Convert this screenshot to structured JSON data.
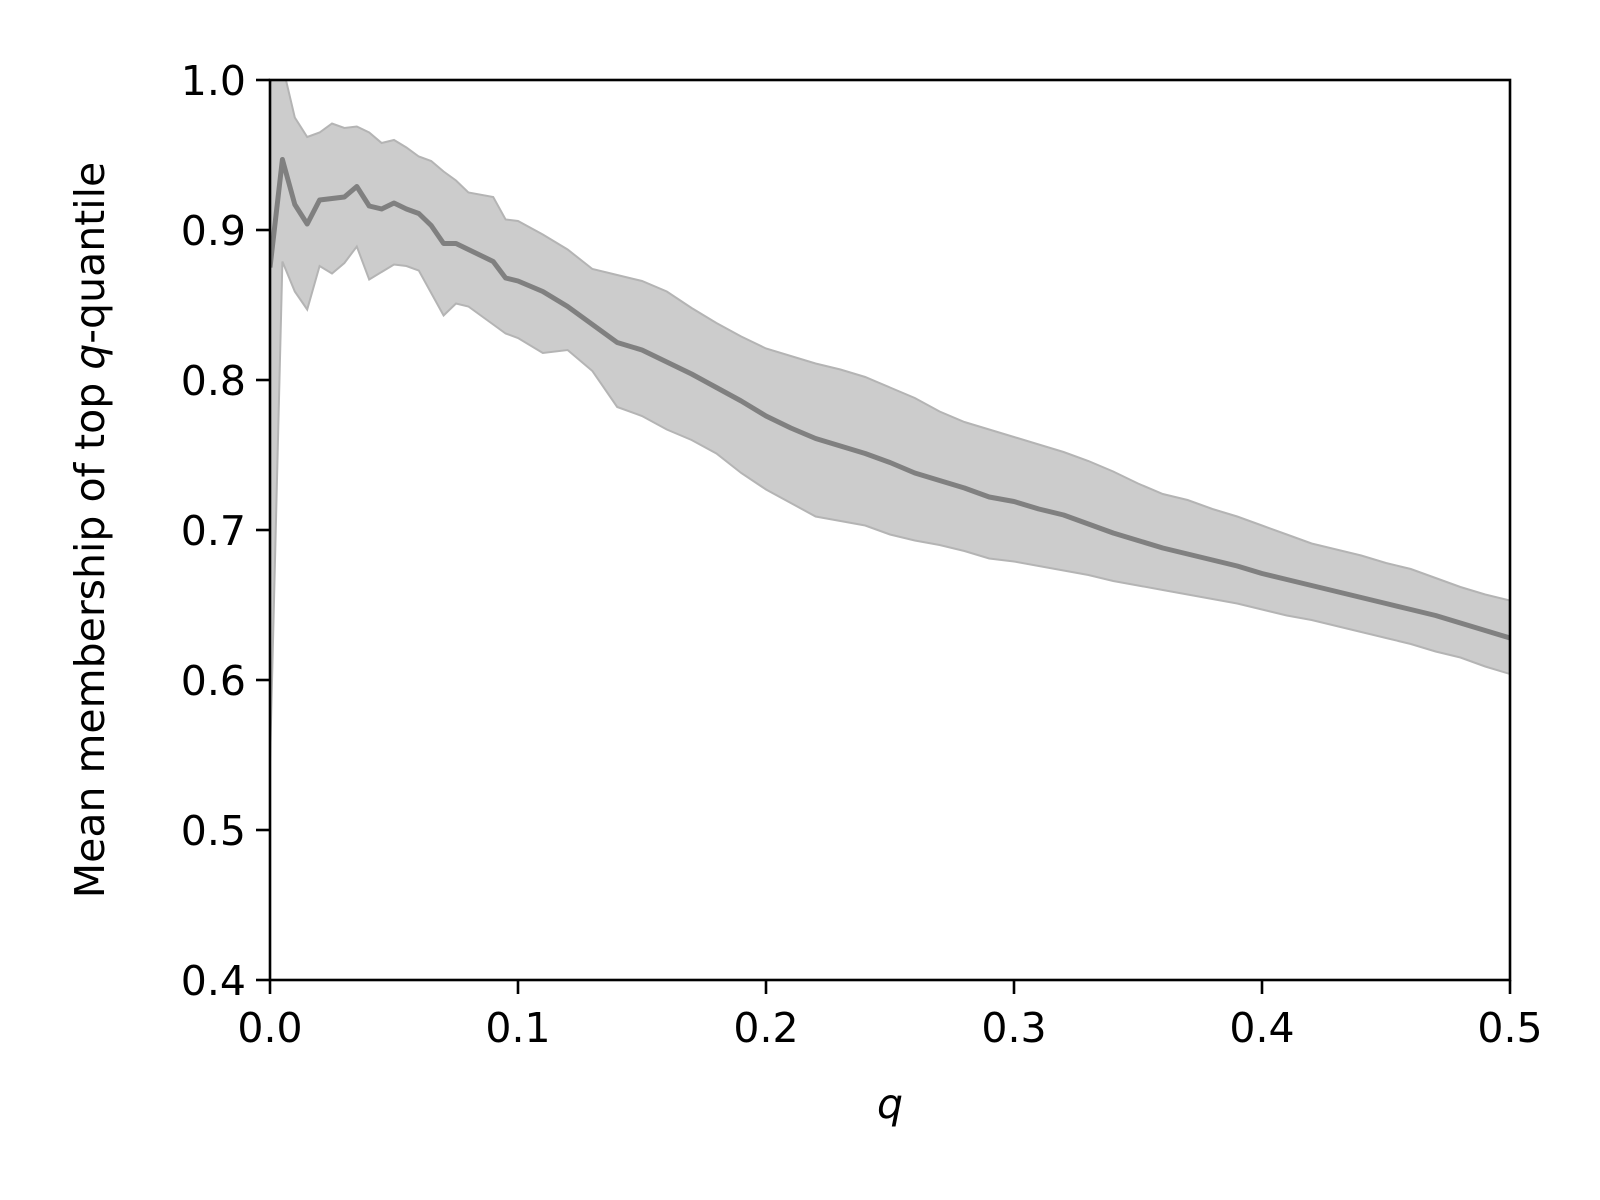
{
  "chart_data": {
    "type": "area",
    "xlabel": "q",
    "ylabel": {
      "prefix": "Mean membership of top ",
      "italic": "q",
      "suffix": "-quantile"
    },
    "xlim": [
      0.0,
      0.5
    ],
    "ylim": [
      0.4,
      1.0
    ],
    "x_ticks": [
      "0.0",
      "0.1",
      "0.2",
      "0.3",
      "0.4",
      "0.5"
    ],
    "y_ticks": [
      "0.4",
      "0.5",
      "0.6",
      "0.7",
      "0.8",
      "0.9",
      "1.0"
    ],
    "grid": false,
    "legend": "none",
    "colors": {
      "line": "#808080",
      "band": "#cccccc",
      "band_edge": "#b4b4b4",
      "axes": "#000000"
    },
    "series": [
      {
        "x": [
          0.0,
          0.005,
          0.01,
          0.015,
          0.02,
          0.025,
          0.03,
          0.035,
          0.04,
          0.045,
          0.05,
          0.055,
          0.06,
          0.065,
          0.07,
          0.075,
          0.08,
          0.09,
          0.095,
          0.1,
          0.11,
          0.12,
          0.13,
          0.14,
          0.15,
          0.16,
          0.17,
          0.18,
          0.19,
          0.2,
          0.21,
          0.22,
          0.23,
          0.24,
          0.25,
          0.26,
          0.27,
          0.28,
          0.29,
          0.3,
          0.31,
          0.32,
          0.33,
          0.34,
          0.35,
          0.36,
          0.37,
          0.38,
          0.39,
          0.4,
          0.41,
          0.42,
          0.43,
          0.44,
          0.45,
          0.46,
          0.47,
          0.48,
          0.49,
          0.5
        ],
        "mean": [
          0.875,
          0.947,
          0.917,
          0.904,
          0.92,
          0.921,
          0.922,
          0.929,
          0.916,
          0.914,
          0.918,
          0.914,
          0.911,
          0.903,
          0.891,
          0.891,
          0.887,
          0.879,
          0.868,
          0.866,
          0.859,
          0.849,
          0.837,
          0.825,
          0.82,
          0.812,
          0.804,
          0.795,
          0.786,
          0.776,
          0.768,
          0.761,
          0.756,
          0.751,
          0.745,
          0.738,
          0.733,
          0.728,
          0.722,
          0.719,
          0.714,
          0.71,
          0.704,
          0.698,
          0.693,
          0.688,
          0.684,
          0.68,
          0.676,
          0.671,
          0.667,
          0.663,
          0.659,
          0.655,
          0.651,
          0.647,
          0.643,
          0.638,
          0.633,
          0.628
        ],
        "upper": [
          0.998,
          1.01,
          0.975,
          0.962,
          0.965,
          0.971,
          0.968,
          0.969,
          0.965,
          0.958,
          0.96,
          0.955,
          0.949,
          0.946,
          0.939,
          0.933,
          0.925,
          0.922,
          0.907,
          0.906,
          0.897,
          0.887,
          0.874,
          0.87,
          0.866,
          0.859,
          0.848,
          0.838,
          0.829,
          0.821,
          0.816,
          0.811,
          0.807,
          0.802,
          0.795,
          0.788,
          0.779,
          0.772,
          0.767,
          0.762,
          0.757,
          0.752,
          0.746,
          0.739,
          0.731,
          0.724,
          0.72,
          0.714,
          0.709,
          0.703,
          0.697,
          0.691,
          0.687,
          0.683,
          0.678,
          0.674,
          0.668,
          0.662,
          0.657,
          0.653
        ],
        "lower": [
          0.545,
          0.879,
          0.859,
          0.847,
          0.876,
          0.871,
          0.878,
          0.889,
          0.867,
          0.872,
          0.877,
          0.876,
          0.873,
          0.858,
          0.843,
          0.851,
          0.849,
          0.837,
          0.831,
          0.828,
          0.818,
          0.82,
          0.806,
          0.782,
          0.776,
          0.767,
          0.76,
          0.751,
          0.738,
          0.727,
          0.718,
          0.709,
          0.706,
          0.703,
          0.697,
          0.693,
          0.69,
          0.686,
          0.681,
          0.679,
          0.676,
          0.673,
          0.67,
          0.666,
          0.663,
          0.66,
          0.657,
          0.654,
          0.651,
          0.647,
          0.643,
          0.64,
          0.636,
          0.632,
          0.628,
          0.624,
          0.619,
          0.615,
          0.609,
          0.604
        ]
      }
    ]
  }
}
